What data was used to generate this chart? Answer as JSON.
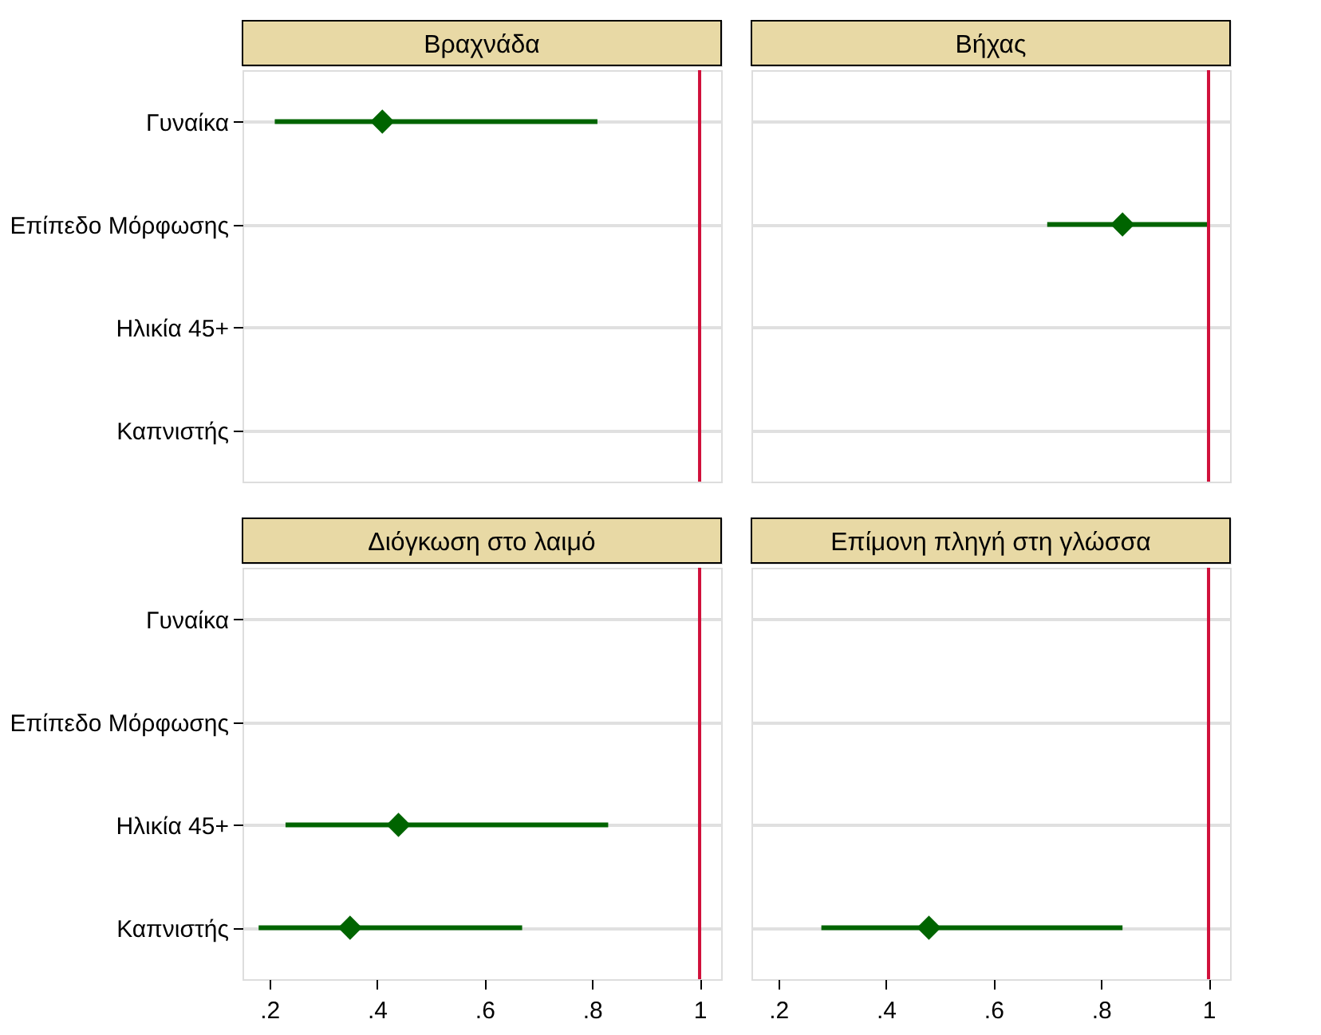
{
  "chart_data": [
    {
      "type": "scatter",
      "title": "Βραχνάδα",
      "orientation": "horizontal",
      "categories": [
        "Γυναίκα",
        "Επίπεδο Μόρφωσης",
        "Ηλικία 45+",
        "Καπνιστής"
      ],
      "series": [
        {
          "color": "#006400",
          "values": [
            0.41,
            null,
            null,
            null
          ],
          "errors": [
            [
              0.21,
              0.81
            ],
            null,
            null,
            null
          ]
        }
      ],
      "marker": "diamond",
      "xlim": [
        0.15,
        1.04
      ],
      "ref_lines": [
        {
          "axis": "x",
          "value": 1,
          "color": "#d0103a"
        }
      ],
      "grid": "y",
      "tick_labels": "y"
    },
    {
      "type": "scatter",
      "title": "Βήχας",
      "orientation": "horizontal",
      "categories": [
        null,
        null,
        null,
        null
      ],
      "series": [
        {
          "color": "#006400",
          "values": [
            null,
            0.84,
            null,
            null
          ],
          "errors": [
            null,
            [
              0.7,
              1.0
            ],
            null,
            null
          ]
        }
      ],
      "marker": "diamond",
      "xlim": [
        0.15,
        1.04
      ],
      "ref_lines": [
        {
          "axis": "x",
          "value": 1,
          "color": "#d0103a"
        }
      ],
      "grid": "y",
      "tick_labels": false
    },
    {
      "type": "scatter",
      "title": "Διόγκωση στο λαιμό",
      "orientation": "horizontal",
      "categories": [
        "Γυναίκα",
        "Επίπεδο Μόρφωσης",
        "Ηλικία 45+",
        "Καπνιστής"
      ],
      "series": [
        {
          "color": "#006400",
          "values": [
            null,
            null,
            0.44,
            0.35
          ],
          "errors": [
            null,
            null,
            [
              0.23,
              0.83
            ],
            [
              0.18,
              0.67
            ]
          ]
        }
      ],
      "marker": "diamond",
      "xlim": [
        0.15,
        1.04
      ],
      "xticks": [
        {
          "value": 0.2,
          "label": ".2"
        },
        {
          "value": 0.4,
          "label": ".4"
        },
        {
          "value": 0.6,
          "label": ".6"
        },
        {
          "value": 0.8,
          "label": ".8"
        },
        1
      ],
      "ref_lines": [
        {
          "axis": "x",
          "value": 1,
          "color": "#d0103a"
        }
      ],
      "grid": "y"
    },
    {
      "type": "scatter",
      "title": "Επίμονη πληγή  στη γλώσσα",
      "orientation": "horizontal",
      "categories": [
        null,
        null,
        null,
        null
      ],
      "series": [
        {
          "color": "#006400",
          "values": [
            null,
            null,
            null,
            0.48
          ],
          "errors": [
            null,
            null,
            null,
            [
              0.28,
              0.84
            ]
          ]
        }
      ],
      "marker": "diamond",
      "xlim": [
        0.15,
        1.04
      ],
      "xticks": [
        {
          "value": 0.2,
          "label": ".2"
        },
        {
          "value": 0.4,
          "label": ".4"
        },
        {
          "value": 0.6,
          "label": ".6"
        },
        {
          "value": 0.8,
          "label": ".8"
        },
        1
      ],
      "ref_lines": [
        {
          "axis": "x",
          "value": 1,
          "color": "#d0103a"
        }
      ],
      "grid": "y",
      "tick_labels": "x"
    }
  ]
}
